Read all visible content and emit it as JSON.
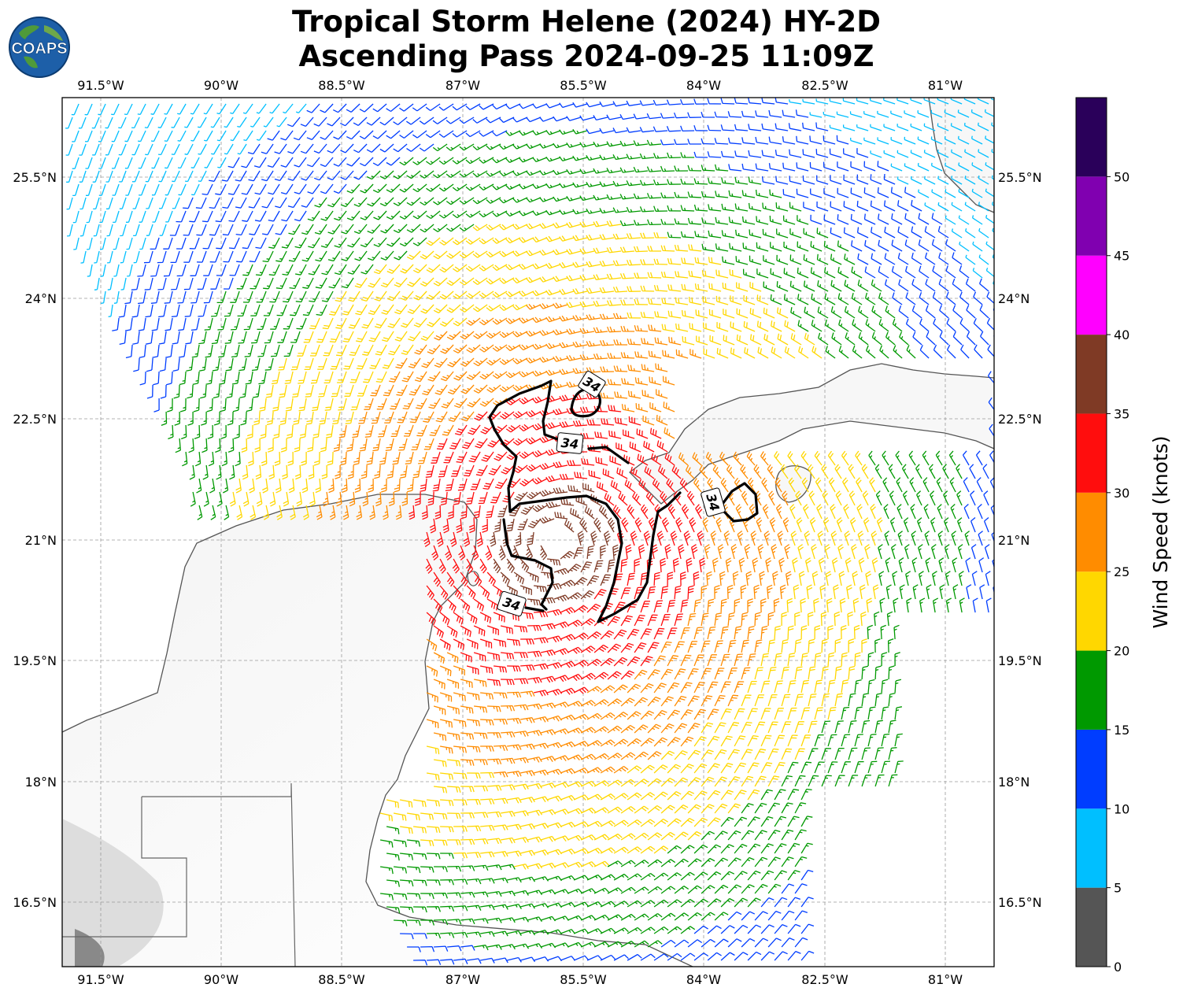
{
  "title": {
    "line1": "Tropical Storm Helene (2024) HY-2D",
    "line2": "Ascending Pass 2024-09-25 11:09Z"
  },
  "logo": {
    "text": "COAPS",
    "icon": "globe-icon"
  },
  "map": {
    "lon_labels": [
      "91.5°W",
      "90°W",
      "88.5°W",
      "87°W",
      "85.5°W",
      "84°W",
      "82.5°W",
      "81°W"
    ],
    "lat_labels": [
      "25.5°N",
      "24°N",
      "22.5°N",
      "21°N",
      "19.5°N",
      "18°N",
      "16.5°N"
    ],
    "lon_range": [
      -92,
      -80.5
    ],
    "lat_range": [
      15.8,
      26.5
    ],
    "contour_value": "34",
    "contour_labels": [
      "34",
      "34",
      "34",
      "34"
    ],
    "storm_center": {
      "lon": -85.9,
      "lat": 21.0
    }
  },
  "colorbar": {
    "label": "Wind Speed (knots)",
    "ticks": [
      "0",
      "5",
      "10",
      "15",
      "20",
      "25",
      "30",
      "35",
      "40",
      "45",
      "50"
    ],
    "bins": [
      {
        "from": 0,
        "to": 5,
        "color": "#555555"
      },
      {
        "from": 5,
        "to": 10,
        "color": "#00bfff"
      },
      {
        "from": 10,
        "to": 15,
        "color": "#003dff"
      },
      {
        "from": 15,
        "to": 20,
        "color": "#009900"
      },
      {
        "from": 20,
        "to": 25,
        "color": "#ffd700"
      },
      {
        "from": 25,
        "to": 30,
        "color": "#ff8c00"
      },
      {
        "from": 30,
        "to": 35,
        "color": "#ff0d0d"
      },
      {
        "from": 35,
        "to": 40,
        "color": "#7f3a25"
      },
      {
        "from": 40,
        "to": 45,
        "color": "#ff00ff"
      },
      {
        "from": 45,
        "to": 50,
        "color": "#8000b0"
      },
      {
        "from": 50,
        "to": 55,
        "color": "#2a005a"
      }
    ]
  }
}
